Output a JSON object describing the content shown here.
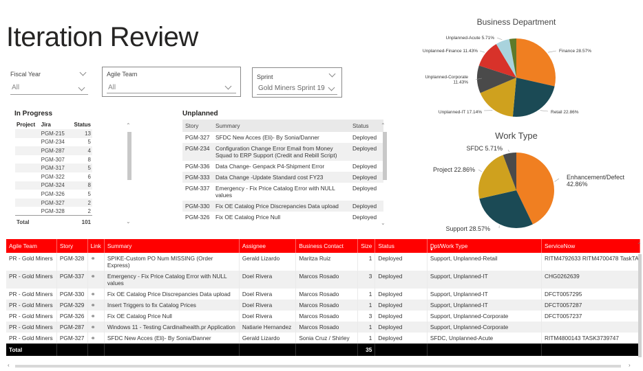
{
  "page_title": "Iteration Review",
  "slicers": {
    "fiscal_year": {
      "label": "Fiscal Year",
      "value": "All"
    },
    "agile_team": {
      "label": "Agile Team",
      "value": "All"
    },
    "sprint": {
      "label": "Sprint",
      "value": "Gold Miners Sprint 19"
    }
  },
  "in_progress": {
    "title": "In Progress",
    "headers": [
      "Project",
      "Jira",
      "Status"
    ],
    "rows": [
      {
        "jira": "PGM-215",
        "status": "13"
      },
      {
        "jira": "PGM-234",
        "status": "5"
      },
      {
        "jira": "PGM-287",
        "status": "4"
      },
      {
        "jira": "PGM-307",
        "status": "8"
      },
      {
        "jira": "PGM-317",
        "status": "5"
      },
      {
        "jira": "PGM-322",
        "status": "6"
      },
      {
        "jira": "PGM-324",
        "status": "8"
      },
      {
        "jira": "PGM-326",
        "status": "5"
      },
      {
        "jira": "PGM-327",
        "status": "2"
      },
      {
        "jira": "PGM-328",
        "status": "2"
      }
    ],
    "total_label": "Total",
    "total_value": "101"
  },
  "unplanned": {
    "title": "Unplanned",
    "headers": [
      "Story",
      "Summary",
      "Status"
    ],
    "rows": [
      {
        "story": "PGM-327",
        "summary": "SFDC New Acces (Eli)- By Sonia/Danner",
        "status": "Deployed"
      },
      {
        "story": "PGM-234",
        "summary": "Configuration Change Error Email from Money Squad to ERP Support (Credit and Rebill Script)",
        "status": "Deployed"
      },
      {
        "story": "PGM-336",
        "summary": "Data Change- Genpack P4-Shipment Error",
        "status": "Deployed"
      },
      {
        "story": "PGM-333",
        "summary": "Data Change -Update Standard cost FY23",
        "status": "Deployed"
      },
      {
        "story": "PGM-337",
        "summary": "Emergency - Fix Price Catalog Error with NULL values",
        "status": "Deployed"
      },
      {
        "story": "PGM-330",
        "summary": "Fix OE Catalog Price Discrepancies Data upload",
        "status": "Deployed"
      },
      {
        "story": "PGM-326",
        "summary": "Fix OE Catalog Price Null",
        "status": "Deployed"
      }
    ]
  },
  "main_table": {
    "headers": [
      "Agile Team",
      "Story",
      "Link",
      "Summary",
      "Assignee",
      "Business Contact",
      "Size",
      "Status",
      "Dpt/Work Type",
      "ServiceNow"
    ],
    "rows": [
      {
        "team": "PR - Gold Miners",
        "story": "PGM-328",
        "summary": "SPIKE-Custom PO Num MISSING (Order Express)",
        "assignee": "Gerald Lizardo",
        "contact": "Maritza Ruiz",
        "size": "1",
        "status": "Deployed",
        "dpt": "Support, Unplanned-Retail",
        "sn": "RITM4792633 RITM4700478 TaskTA"
      },
      {
        "team": "PR - Gold Miners",
        "story": "PGM-337",
        "summary": "Emergency - Fix Price Catalog Error with NULL values",
        "assignee": "Doel Rivera",
        "contact": "Marcos Rosado",
        "size": "3",
        "status": "Deployed",
        "dpt": "Support, Unplanned-IT",
        "sn": "CHG0262639"
      },
      {
        "team": "PR - Gold Miners",
        "story": "PGM-330",
        "summary": "Fix OE Catalog Price Discrepancies Data upload",
        "assignee": "Doel Rivera",
        "contact": "Marcos Rosado",
        "size": "1",
        "status": "Deployed",
        "dpt": "Support, Unplanned-IT",
        "sn": "DFCT0057295"
      },
      {
        "team": "PR - Gold Miners",
        "story": "PGM-329",
        "summary": "Insert Triggers to fix Catalog Prices",
        "assignee": "Doel Rivera",
        "contact": "Marcos Rosado",
        "size": "1",
        "status": "Deployed",
        "dpt": "Support, Unplanned-IT",
        "sn": "DFCT0057287"
      },
      {
        "team": "PR - Gold Miners",
        "story": "PGM-326",
        "summary": "Fix OE Catalog Price Null",
        "assignee": "Doel Rivera",
        "contact": "Marcos Rosado",
        "size": "3",
        "status": "Deployed",
        "dpt": "Support, Unplanned-Corporate",
        "sn": "DFCT0057237"
      },
      {
        "team": "PR - Gold Miners",
        "story": "PGM-287",
        "summary": "Windows 11 - Testing Cardinalhealth.pr Application",
        "assignee": "Natiarie Hernandez",
        "contact": "Marcos Rosado",
        "size": "1",
        "status": "Deployed",
        "dpt": "Support, Unplanned-Corporate",
        "sn": ""
      },
      {
        "team": "PR - Gold Miners",
        "story": "PGM-327",
        "summary": "SFDC New Acces (Eli)- By Sonia/Danner",
        "assignee": "Gerald Lizardo",
        "contact": "Sonia Cruz / Shirley",
        "size": "1",
        "status": "Deployed",
        "dpt": "SFDC, Unplanned-Acute",
        "sn": "RITM4800143 TASK3739747"
      }
    ],
    "total_label": "Total",
    "total_size": "35"
  },
  "chart_data": [
    {
      "type": "pie",
      "title": "Business Department",
      "slices": [
        {
          "label": "Finance",
          "value": 28.57,
          "display": "Finance 28.57%",
          "color": "#f07f21"
        },
        {
          "label": "Retail",
          "value": 22.86,
          "display": "Retail 22.86%",
          "color": "#1b4a55"
        },
        {
          "label": "Unplanned-IT",
          "value": 17.14,
          "display": "Unplanned-IT 17.14%",
          "color": "#cfa11e"
        },
        {
          "label": "Unplanned-Corporate",
          "value": 11.43,
          "display": "Unplanned-Corporate 11.43%",
          "color": "#4a4a4a"
        },
        {
          "label": "Unplanned-Finance",
          "value": 11.43,
          "display": "Unplanned-Finance 11.43%",
          "color": "#d8322a"
        },
        {
          "label": "Unplanned-Acute",
          "value": 5.71,
          "display": "Unplanned-Acute 5.71%",
          "color": "#a9d3dd"
        },
        {
          "label": "",
          "value": 2.86,
          "display": "",
          "color": "#5e7a2a"
        }
      ]
    },
    {
      "type": "pie",
      "title": "Work Type",
      "slices": [
        {
          "label": "Enhancement/Defect",
          "value": 42.86,
          "display": "Enhancement/Defect 42.86%",
          "color": "#f07f21"
        },
        {
          "label": "Support",
          "value": 28.57,
          "display": "Support 28.57%",
          "color": "#1b4a55"
        },
        {
          "label": "Project",
          "value": 22.86,
          "display": "Project 22.86%",
          "color": "#cfa11e"
        },
        {
          "label": "SFDC",
          "value": 5.71,
          "display": "SFDC 5.71%",
          "color": "#4a4a4a"
        }
      ]
    }
  ]
}
